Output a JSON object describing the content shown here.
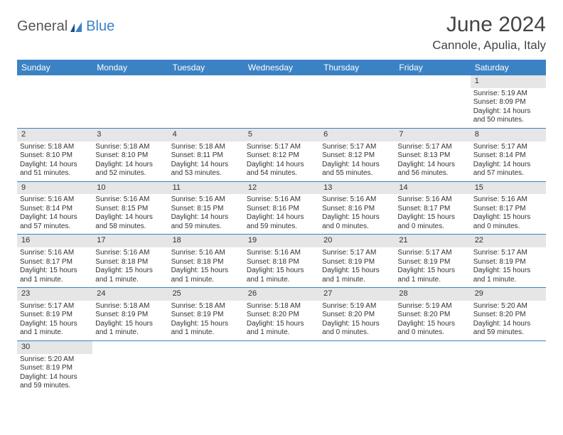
{
  "logo": {
    "general": "General",
    "blue": "Blue"
  },
  "title": "June 2024",
  "location": "Cannole, Apulia, Italy",
  "colors": {
    "header_bg": "#3b82c4",
    "header_text": "#ffffff",
    "daynum_bg": "#e6e6e6",
    "cell_border": "#3b82c4",
    "body_text": "#333333",
    "title_text": "#444444"
  },
  "dayHeaders": [
    "Sunday",
    "Monday",
    "Tuesday",
    "Wednesday",
    "Thursday",
    "Friday",
    "Saturday"
  ],
  "weeks": [
    [
      null,
      null,
      null,
      null,
      null,
      null,
      {
        "n": "1",
        "sr": "Sunrise: 5:19 AM",
        "ss": "Sunset: 8:09 PM",
        "dl": "Daylight: 14 hours and 50 minutes."
      }
    ],
    [
      {
        "n": "2",
        "sr": "Sunrise: 5:18 AM",
        "ss": "Sunset: 8:10 PM",
        "dl": "Daylight: 14 hours and 51 minutes."
      },
      {
        "n": "3",
        "sr": "Sunrise: 5:18 AM",
        "ss": "Sunset: 8:10 PM",
        "dl": "Daylight: 14 hours and 52 minutes."
      },
      {
        "n": "4",
        "sr": "Sunrise: 5:18 AM",
        "ss": "Sunset: 8:11 PM",
        "dl": "Daylight: 14 hours and 53 minutes."
      },
      {
        "n": "5",
        "sr": "Sunrise: 5:17 AM",
        "ss": "Sunset: 8:12 PM",
        "dl": "Daylight: 14 hours and 54 minutes."
      },
      {
        "n": "6",
        "sr": "Sunrise: 5:17 AM",
        "ss": "Sunset: 8:12 PM",
        "dl": "Daylight: 14 hours and 55 minutes."
      },
      {
        "n": "7",
        "sr": "Sunrise: 5:17 AM",
        "ss": "Sunset: 8:13 PM",
        "dl": "Daylight: 14 hours and 56 minutes."
      },
      {
        "n": "8",
        "sr": "Sunrise: 5:17 AM",
        "ss": "Sunset: 8:14 PM",
        "dl": "Daylight: 14 hours and 57 minutes."
      }
    ],
    [
      {
        "n": "9",
        "sr": "Sunrise: 5:16 AM",
        "ss": "Sunset: 8:14 PM",
        "dl": "Daylight: 14 hours and 57 minutes."
      },
      {
        "n": "10",
        "sr": "Sunrise: 5:16 AM",
        "ss": "Sunset: 8:15 PM",
        "dl": "Daylight: 14 hours and 58 minutes."
      },
      {
        "n": "11",
        "sr": "Sunrise: 5:16 AM",
        "ss": "Sunset: 8:15 PM",
        "dl": "Daylight: 14 hours and 59 minutes."
      },
      {
        "n": "12",
        "sr": "Sunrise: 5:16 AM",
        "ss": "Sunset: 8:16 PM",
        "dl": "Daylight: 14 hours and 59 minutes."
      },
      {
        "n": "13",
        "sr": "Sunrise: 5:16 AM",
        "ss": "Sunset: 8:16 PM",
        "dl": "Daylight: 15 hours and 0 minutes."
      },
      {
        "n": "14",
        "sr": "Sunrise: 5:16 AM",
        "ss": "Sunset: 8:17 PM",
        "dl": "Daylight: 15 hours and 0 minutes."
      },
      {
        "n": "15",
        "sr": "Sunrise: 5:16 AM",
        "ss": "Sunset: 8:17 PM",
        "dl": "Daylight: 15 hours and 0 minutes."
      }
    ],
    [
      {
        "n": "16",
        "sr": "Sunrise: 5:16 AM",
        "ss": "Sunset: 8:17 PM",
        "dl": "Daylight: 15 hours and 1 minute."
      },
      {
        "n": "17",
        "sr": "Sunrise: 5:16 AM",
        "ss": "Sunset: 8:18 PM",
        "dl": "Daylight: 15 hours and 1 minute."
      },
      {
        "n": "18",
        "sr": "Sunrise: 5:16 AM",
        "ss": "Sunset: 8:18 PM",
        "dl": "Daylight: 15 hours and 1 minute."
      },
      {
        "n": "19",
        "sr": "Sunrise: 5:16 AM",
        "ss": "Sunset: 8:18 PM",
        "dl": "Daylight: 15 hours and 1 minute."
      },
      {
        "n": "20",
        "sr": "Sunrise: 5:17 AM",
        "ss": "Sunset: 8:19 PM",
        "dl": "Daylight: 15 hours and 1 minute."
      },
      {
        "n": "21",
        "sr": "Sunrise: 5:17 AM",
        "ss": "Sunset: 8:19 PM",
        "dl": "Daylight: 15 hours and 1 minute."
      },
      {
        "n": "22",
        "sr": "Sunrise: 5:17 AM",
        "ss": "Sunset: 8:19 PM",
        "dl": "Daylight: 15 hours and 1 minute."
      }
    ],
    [
      {
        "n": "23",
        "sr": "Sunrise: 5:17 AM",
        "ss": "Sunset: 8:19 PM",
        "dl": "Daylight: 15 hours and 1 minute."
      },
      {
        "n": "24",
        "sr": "Sunrise: 5:18 AM",
        "ss": "Sunset: 8:19 PM",
        "dl": "Daylight: 15 hours and 1 minute."
      },
      {
        "n": "25",
        "sr": "Sunrise: 5:18 AM",
        "ss": "Sunset: 8:19 PM",
        "dl": "Daylight: 15 hours and 1 minute."
      },
      {
        "n": "26",
        "sr": "Sunrise: 5:18 AM",
        "ss": "Sunset: 8:20 PM",
        "dl": "Daylight: 15 hours and 1 minute."
      },
      {
        "n": "27",
        "sr": "Sunrise: 5:19 AM",
        "ss": "Sunset: 8:20 PM",
        "dl": "Daylight: 15 hours and 0 minutes."
      },
      {
        "n": "28",
        "sr": "Sunrise: 5:19 AM",
        "ss": "Sunset: 8:20 PM",
        "dl": "Daylight: 15 hours and 0 minutes."
      },
      {
        "n": "29",
        "sr": "Sunrise: 5:20 AM",
        "ss": "Sunset: 8:20 PM",
        "dl": "Daylight: 14 hours and 59 minutes."
      }
    ],
    [
      {
        "n": "30",
        "sr": "Sunrise: 5:20 AM",
        "ss": "Sunset: 8:19 PM",
        "dl": "Daylight: 14 hours and 59 minutes."
      },
      null,
      null,
      null,
      null,
      null,
      null
    ]
  ]
}
